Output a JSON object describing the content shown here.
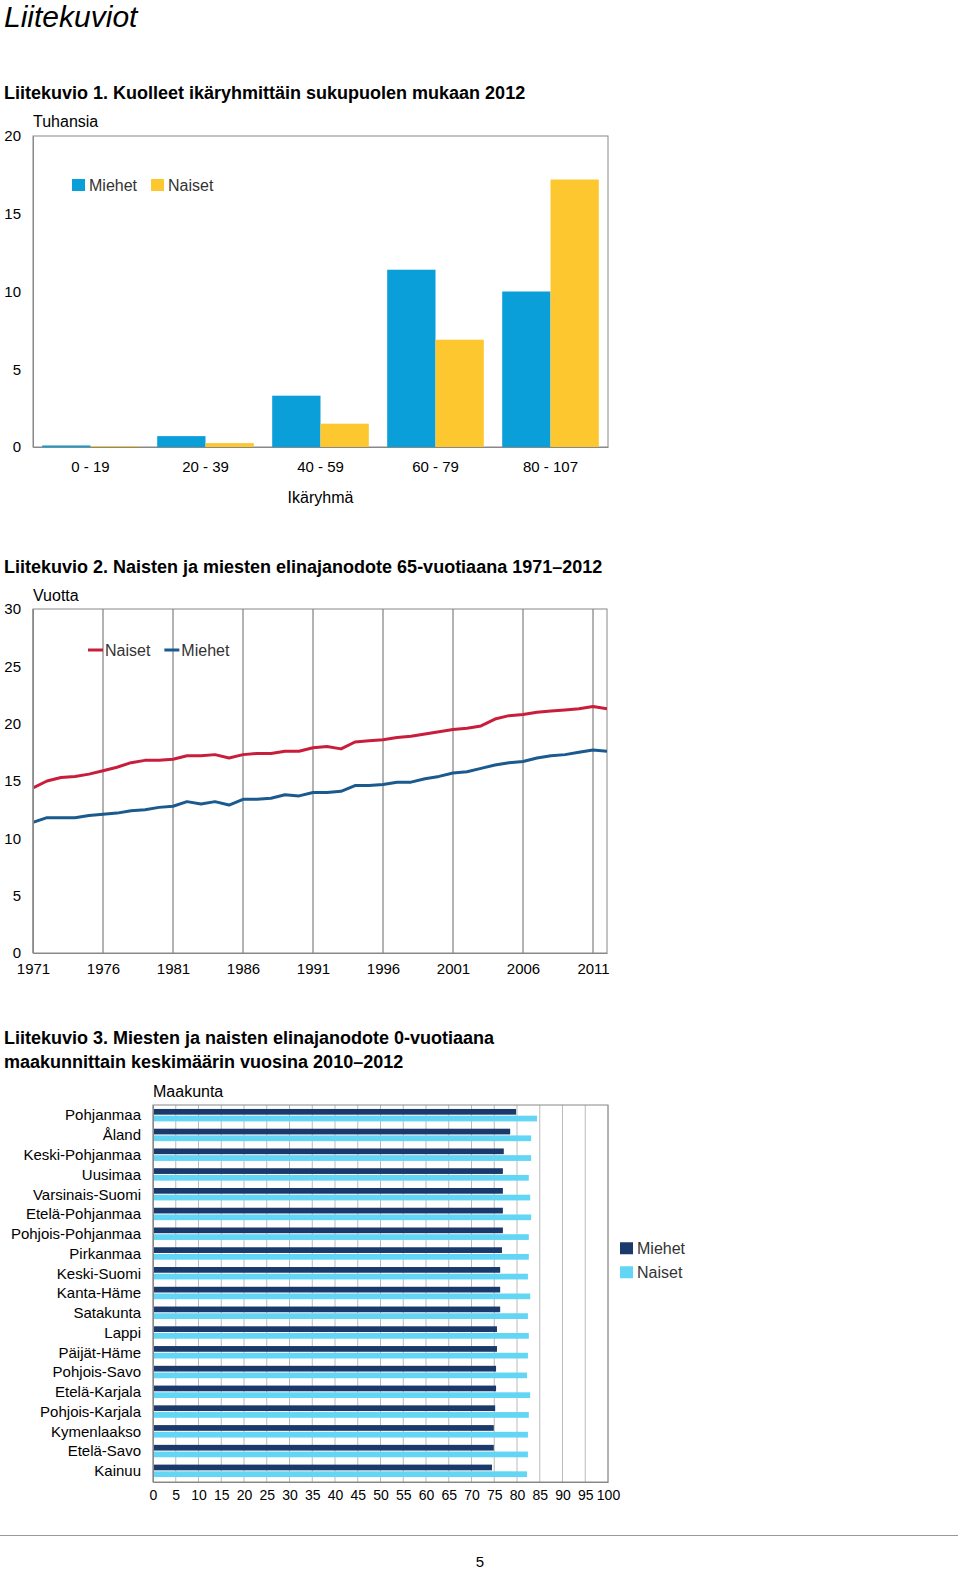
{
  "header": {
    "title": "Liitekuviot"
  },
  "chart_data": [
    {
      "type": "bar",
      "title": "Liitekuvio 1. Kuolleet ikäryhmittäin sukupuolen mukaan 2012",
      "y_label": "Tuhansia",
      "x_label": "Ikäryhmä",
      "categories": [
        "0 - 19",
        "20 - 39",
        "40 - 59",
        "60 - 79",
        "80 - 107"
      ],
      "series": [
        {
          "name": "Miehet",
          "color": "#0a9fd9",
          "values": [
            0.1,
            0.7,
            3.3,
            11.4,
            10.0
          ]
        },
        {
          "name": "Naiset",
          "color": "#fdc82f",
          "values": [
            0.05,
            0.25,
            1.5,
            6.9,
            17.2
          ]
        }
      ],
      "ylim": [
        0,
        20
      ],
      "yticks": [
        0,
        5,
        10,
        15,
        20
      ],
      "grid": false,
      "legend": "top-left"
    },
    {
      "type": "line",
      "title": "Liitekuvio 2. Naisten ja miesten elinajanodote 65-vuotiaana 1971–2012",
      "y_label": "Vuotta",
      "x": [
        1971,
        1972,
        1973,
        1974,
        1975,
        1976,
        1977,
        1978,
        1979,
        1980,
        1981,
        1982,
        1983,
        1984,
        1985,
        1986,
        1987,
        1988,
        1989,
        1990,
        1991,
        1992,
        1993,
        1994,
        1995,
        1996,
        1997,
        1998,
        1999,
        2000,
        2001,
        2002,
        2003,
        2004,
        2005,
        2006,
        2007,
        2008,
        2009,
        2010,
        2011,
        2012
      ],
      "series": [
        {
          "name": "Naiset",
          "color": "#c81e3c",
          "values": [
            14.4,
            15.0,
            15.3,
            15.4,
            15.6,
            15.9,
            16.2,
            16.6,
            16.8,
            16.8,
            16.9,
            17.2,
            17.2,
            17.3,
            17.0,
            17.3,
            17.4,
            17.4,
            17.6,
            17.6,
            17.9,
            18.0,
            17.8,
            18.4,
            18.5,
            18.6,
            18.8,
            18.9,
            19.1,
            19.3,
            19.5,
            19.6,
            19.8,
            20.4,
            20.7,
            20.8,
            21.0,
            21.1,
            21.2,
            21.3,
            21.5,
            21.3
          ]
        },
        {
          "name": "Miehet",
          "color": "#1a5a8e",
          "values": [
            11.4,
            11.8,
            11.8,
            11.8,
            12.0,
            12.1,
            12.2,
            12.4,
            12.5,
            12.7,
            12.8,
            13.2,
            13.0,
            13.2,
            12.9,
            13.4,
            13.4,
            13.5,
            13.8,
            13.7,
            14.0,
            14.0,
            14.1,
            14.6,
            14.6,
            14.7,
            14.9,
            14.9,
            15.2,
            15.4,
            15.7,
            15.8,
            16.1,
            16.4,
            16.6,
            16.7,
            17.0,
            17.2,
            17.3,
            17.5,
            17.7,
            17.6
          ]
        }
      ],
      "xlim": [
        1971,
        2012
      ],
      "xticks": [
        1971,
        1976,
        1981,
        1986,
        1991,
        1996,
        2001,
        2006,
        2011
      ],
      "ylim": [
        0,
        30
      ],
      "yticks": [
        0,
        5,
        10,
        15,
        20,
        25,
        30
      ],
      "grid": true,
      "legend": "top-left"
    },
    {
      "type": "bar",
      "orientation": "horizontal",
      "title": "Liitekuvio 3. Miesten ja naisten elinajanodote 0-vuotiaana maakunnittain keskimäärin vuosina 2010–2012",
      "y_label": "Maakunta",
      "categories": [
        "Pohjanmaa",
        "Åland",
        "Keski-Pohjanmaa",
        "Uusimaa",
        "Varsinais-Suomi",
        "Etelä-Pohjanmaa",
        "Pohjois-Pohjanmaa",
        "Pirkanmaa",
        "Keski-Suomi",
        "Kanta-Häme",
        "Satakunta",
        "Lappi",
        "Päijät-Häme",
        "Pohjois-Savo",
        "Etelä-Karjala",
        "Pohjois-Karjala",
        "Kymenlaakso",
        "Etelä-Savo",
        "Kainuu"
      ],
      "series": [
        {
          "name": "Miehet",
          "color": "#1b3a6b",
          "values": [
            79.8,
            78.5,
            77.1,
            76.9,
            76.9,
            76.9,
            76.9,
            76.7,
            76.3,
            76.3,
            76.3,
            75.6,
            75.6,
            75.4,
            75.4,
            75.2,
            74.9,
            74.9,
            74.5
          ]
        },
        {
          "name": "Naiset",
          "color": "#63d5f5",
          "values": [
            84.4,
            83.1,
            83.1,
            82.6,
            82.9,
            83.1,
            82.6,
            82.6,
            82.4,
            82.9,
            82.4,
            82.6,
            82.4,
            82.2,
            82.9,
            82.6,
            82.4,
            82.4,
            82.2
          ]
        }
      ],
      "xlim": [
        0,
        100
      ],
      "xticks": [
        0,
        5,
        10,
        15,
        20,
        25,
        30,
        35,
        40,
        45,
        50,
        55,
        60,
        65,
        70,
        75,
        80,
        85,
        90,
        95,
        100
      ],
      "grid": true,
      "legend": "right"
    }
  ],
  "footer": {
    "page": "5"
  }
}
